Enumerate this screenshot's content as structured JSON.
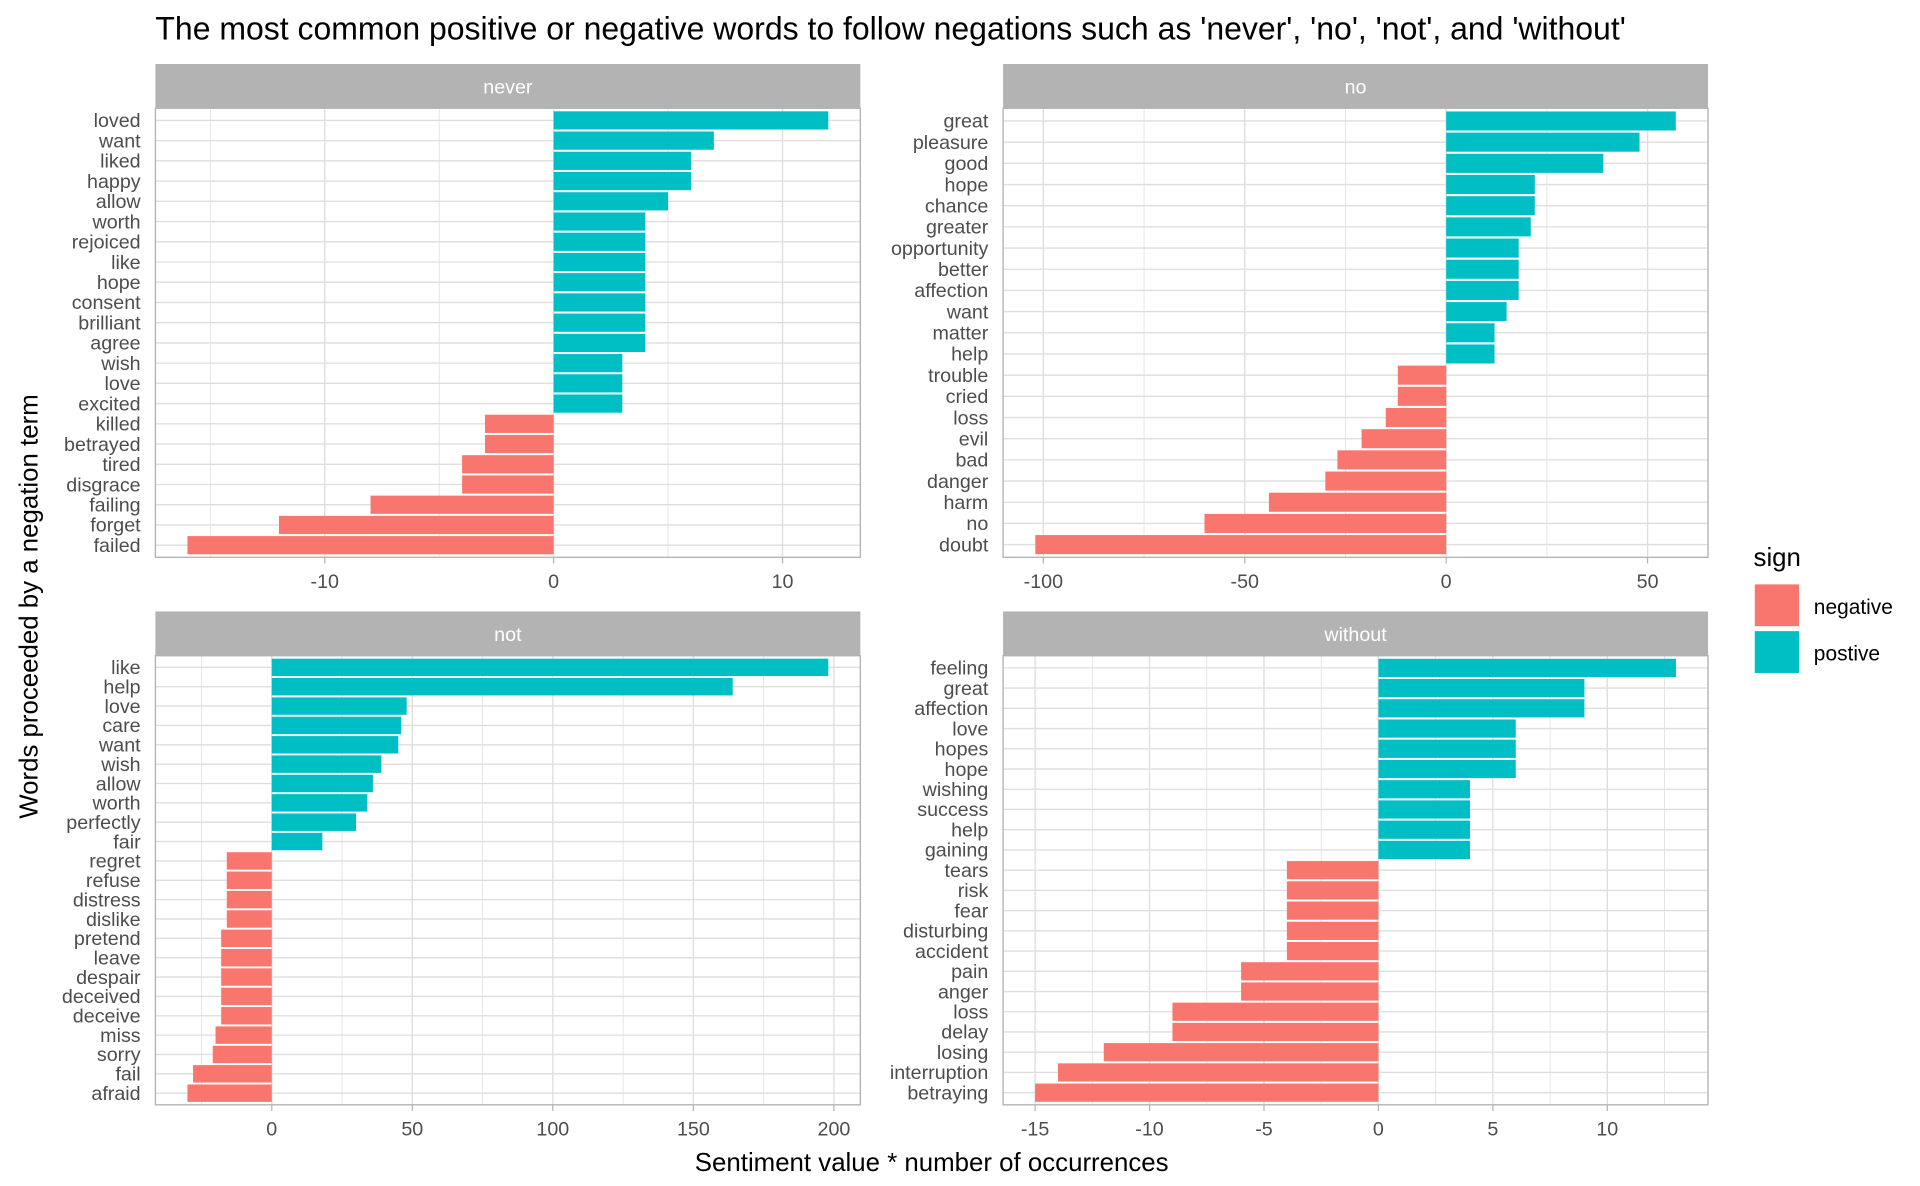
{
  "chart_data": {
    "type": "bar",
    "orientation": "horizontal",
    "title": "The most common positive or negative words to follow negations such as 'never', 'no', 'not', and 'without'",
    "xlabel": "Sentiment value * number of occurrences",
    "ylabel": "Words proceeded by a negation term",
    "grid": true,
    "legend": {
      "title": "sign",
      "placement": "right",
      "entries": [
        {
          "label": "negative",
          "color": "#F8766D"
        },
        {
          "label": "postive",
          "color": "#00BFC4"
        }
      ]
    },
    "facets": [
      {
        "name": "never",
        "xlim": [
          -17.4,
          13.4
        ],
        "xticks": [
          -10,
          0,
          10
        ],
        "words": [
          "loved",
          "want",
          "liked",
          "happy",
          "allow",
          "worth",
          "rejoiced",
          "like",
          "hope",
          "consent",
          "brilliant",
          "agree",
          "wish",
          "love",
          "excited",
          "killed",
          "betrayed",
          "tired",
          "disgrace",
          "failing",
          "forget",
          "failed"
        ],
        "values": [
          12,
          7,
          6,
          6,
          5,
          4,
          4,
          4,
          4,
          4,
          4,
          4,
          3,
          3,
          3,
          -3,
          -3,
          -4,
          -4,
          -8,
          -12,
          -16
        ]
      },
      {
        "name": "no",
        "xlim": [
          -110,
          65
        ],
        "xticks": [
          -100,
          -50,
          0,
          50
        ],
        "words": [
          "great",
          "pleasure",
          "good",
          "hope",
          "chance",
          "greater",
          "opportunity",
          "better",
          "affection",
          "want",
          "matter",
          "help",
          "trouble",
          "cried",
          "loss",
          "evil",
          "bad",
          "danger",
          "harm",
          "no",
          "doubt"
        ],
        "values": [
          57,
          48,
          39,
          22,
          22,
          21,
          18,
          18,
          18,
          15,
          12,
          12,
          -12,
          -12,
          -15,
          -21,
          -27,
          -30,
          -44,
          -60,
          -102
        ]
      },
      {
        "name": "not",
        "xlim": [
          -41.4,
          209.4
        ],
        "xticks": [
          0,
          50,
          100,
          150,
          200
        ],
        "words": [
          "like",
          "help",
          "love",
          "care",
          "want",
          "wish",
          "allow",
          "worth",
          "perfectly",
          "fair",
          "regret",
          "refuse",
          "distress",
          "dislike",
          "pretend",
          "leave",
          "despair",
          "deceived",
          "deceive",
          "miss",
          "sorry",
          "fail",
          "afraid"
        ],
        "values": [
          198,
          164,
          48,
          46,
          45,
          39,
          36,
          34,
          30,
          18,
          -16,
          -16,
          -16,
          -16,
          -18,
          -18,
          -18,
          -18,
          -18,
          -20,
          -21,
          -28,
          -30
        ]
      },
      {
        "name": "without",
        "xlim": [
          -16.4,
          14.4
        ],
        "xticks": [
          -15,
          -10,
          -5,
          0,
          5,
          10
        ],
        "words": [
          "feeling",
          "great",
          "affection",
          "love",
          "hopes",
          "hope",
          "wishing",
          "success",
          "help",
          "gaining",
          "tears",
          "risk",
          "fear",
          "disturbing",
          "accident",
          "pain",
          "anger",
          "loss",
          "delay",
          "losing",
          "interruption",
          "betraying"
        ],
        "values": [
          13,
          9,
          9,
          6,
          6,
          6,
          4,
          4,
          4,
          4,
          -4,
          -4,
          -4,
          -4,
          -4,
          -6,
          -6,
          -9,
          -9,
          -12,
          -14,
          -15
        ]
      }
    ]
  }
}
